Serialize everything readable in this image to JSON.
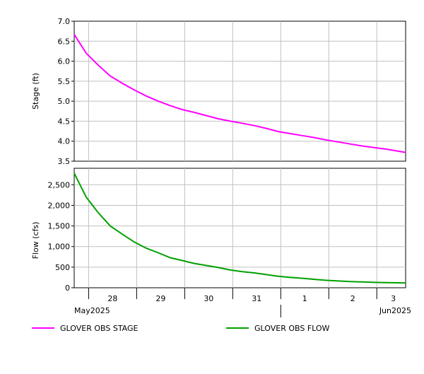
{
  "chart_data": [
    {
      "type": "line",
      "ylabel": "Stage (ft)",
      "ylim": [
        3.5,
        7.0
      ],
      "yticks": [
        "3.5",
        "4.0",
        "4.5",
        "5.0",
        "5.5",
        "6.0",
        "6.5",
        "7.0"
      ],
      "grid": true,
      "series": [
        {
          "name": "GLOVER OBS STAGE",
          "color": "#ff00ff",
          "x": [
            0,
            0.25,
            0.5,
            0.75,
            1,
            1.25,
            1.5,
            1.75,
            2,
            2.25,
            2.5,
            2.75,
            3,
            3.25,
            3.5,
            3.75,
            4,
            4.25,
            4.5,
            4.75,
            5,
            5.25,
            5.5,
            5.75,
            6,
            6.25,
            6.5,
            6.75,
            6.9
          ],
          "values": [
            6.67,
            6.2,
            5.9,
            5.63,
            5.45,
            5.28,
            5.13,
            5.0,
            4.89,
            4.79,
            4.72,
            4.64,
            4.56,
            4.5,
            4.45,
            4.39,
            4.32,
            4.24,
            4.19,
            4.14,
            4.09,
            4.03,
            3.98,
            3.93,
            3.88,
            3.84,
            3.8,
            3.75,
            3.72
          ]
        }
      ]
    },
    {
      "type": "line",
      "ylabel": "Flow (cfs)",
      "ylim": [
        0,
        2900
      ],
      "yticks": [
        "0",
        "500",
        "1,000",
        "1,500",
        "2,000",
        "2,500"
      ],
      "grid": true,
      "series": [
        {
          "name": "GLOVER OBS FLOW",
          "color": "#00a000",
          "x": [
            0,
            0.25,
            0.5,
            0.75,
            1,
            1.25,
            1.5,
            1.75,
            2,
            2.25,
            2.5,
            2.75,
            3,
            3.25,
            3.5,
            3.75,
            4,
            4.25,
            4.5,
            4.75,
            5,
            5.25,
            5.5,
            5.75,
            6,
            6.25,
            6.5,
            6.75,
            6.9
          ],
          "values": [
            2780,
            2200,
            1820,
            1500,
            1300,
            1110,
            960,
            850,
            730,
            660,
            590,
            540,
            490,
            430,
            390,
            360,
            320,
            280,
            250,
            230,
            205,
            180,
            165,
            150,
            140,
            130,
            125,
            120,
            115
          ]
        }
      ]
    }
  ],
  "x_axis": {
    "day_labels": [
      "28",
      "29",
      "30",
      "31",
      "1",
      "2",
      "3"
    ],
    "month_labels": [
      "May2025",
      "Jun2025"
    ]
  },
  "legend": {
    "stage_label": "GLOVER OBS STAGE",
    "stage_color": "#ff00ff",
    "flow_label": "GLOVER OBS FLOW",
    "flow_color": "#00a000"
  }
}
